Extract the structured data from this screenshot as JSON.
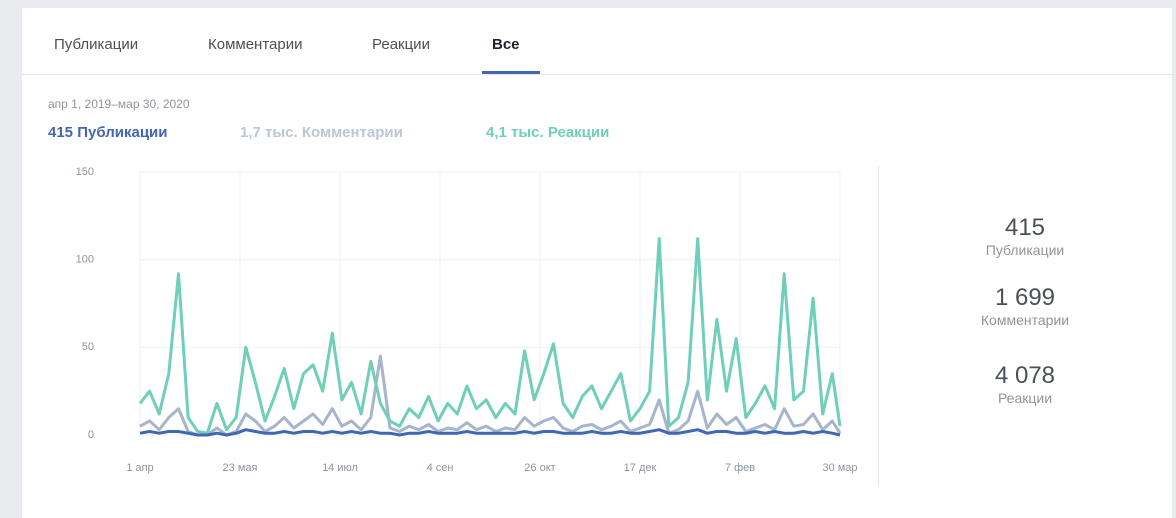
{
  "tabs": [
    "Публикации",
    "Комментарии",
    "Реакции",
    "Все"
  ],
  "date_range": "апр 1, 2019–мар 30, 2020",
  "summary": [
    "415",
    "1,7 тыс.",
    "4,1 тыс."
  ],
  "stats": [
    {
      "value": "415",
      "label": "Публикации"
    },
    {
      "value": "1 699",
      "label": "Комментарии"
    },
    {
      "value": "4 078",
      "label": "Реакции"
    }
  ],
  "chart_data": {
    "type": "line",
    "x": [
      0,
      5,
      10,
      15,
      20,
      25,
      30,
      35,
      40,
      45,
      50,
      55,
      60,
      65,
      70,
      75,
      80,
      85,
      90,
      95,
      100,
      105,
      110,
      115,
      120,
      125,
      130,
      135,
      140,
      145,
      150,
      155,
      160,
      165,
      170,
      175,
      180,
      185,
      190,
      195,
      200,
      205,
      210,
      215,
      220,
      225,
      230,
      235,
      240,
      245,
      250,
      255,
      260,
      265,
      270,
      275,
      280,
      285,
      290,
      295,
      300,
      305,
      310,
      315,
      320,
      325,
      330,
      335,
      340,
      345,
      350,
      355,
      360,
      364
    ],
    "xlim": [
      0,
      364
    ],
    "xticks": [
      {
        "value": 0,
        "label": "1 апр"
      },
      {
        "value": 52,
        "label": "23 мая"
      },
      {
        "value": 104,
        "label": "14 июл"
      },
      {
        "value": 156,
        "label": "4 сен"
      },
      {
        "value": 208,
        "label": "26 окт"
      },
      {
        "value": 260,
        "label": "17 дек"
      },
      {
        "value": 312,
        "label": "7 фев"
      },
      {
        "value": 364,
        "label": "30 мар"
      }
    ],
    "ylim": [
      0,
      150
    ],
    "yticks": [
      0,
      50,
      100,
      150
    ],
    "grid": true,
    "series": [
      {
        "name": "Публикации",
        "color": "#4267b2",
        "values": [
          1,
          2,
          1,
          2,
          2,
          1,
          0,
          0,
          1,
          0,
          1,
          3,
          2,
          1,
          1,
          2,
          1,
          2,
          2,
          1,
          2,
          1,
          2,
          1,
          2,
          1,
          1,
          0,
          1,
          1,
          2,
          1,
          1,
          1,
          2,
          1,
          1,
          1,
          1,
          1,
          2,
          1,
          2,
          2,
          1,
          1,
          1,
          2,
          1,
          1,
          2,
          1,
          1,
          2,
          3,
          1,
          1,
          2,
          3,
          1,
          2,
          2,
          1,
          1,
          2,
          1,
          2,
          1,
          1,
          2,
          1,
          2,
          1,
          0
        ]
      },
      {
        "name": "Комментарии",
        "color": "#a6b4cc",
        "values": [
          5,
          8,
          3,
          10,
          15,
          2,
          0,
          0,
          4,
          0,
          2,
          12,
          8,
          2,
          5,
          10,
          4,
          8,
          12,
          6,
          15,
          5,
          8,
          3,
          10,
          45,
          4,
          2,
          5,
          3,
          6,
          2,
          4,
          3,
          7,
          3,
          5,
          2,
          4,
          3,
          10,
          5,
          8,
          10,
          4,
          2,
          5,
          6,
          3,
          5,
          8,
          2,
          4,
          6,
          20,
          1,
          3,
          8,
          25,
          4,
          12,
          6,
          10,
          2,
          4,
          6,
          3,
          15,
          5,
          6,
          12,
          3,
          8,
          1
        ]
      },
      {
        "name": "Реакции",
        "color": "#6fcfb8",
        "values": [
          18,
          25,
          12,
          35,
          92,
          10,
          2,
          1,
          18,
          3,
          10,
          50,
          30,
          8,
          22,
          38,
          15,
          35,
          40,
          25,
          58,
          20,
          30,
          12,
          42,
          18,
          8,
          5,
          15,
          10,
          22,
          8,
          18,
          12,
          28,
          15,
          20,
          10,
          18,
          12,
          48,
          20,
          35,
          52,
          18,
          10,
          22,
          28,
          15,
          25,
          35,
          8,
          15,
          25,
          112,
          5,
          10,
          30,
          112,
          20,
          66,
          25,
          55,
          10,
          18,
          28,
          15,
          92,
          20,
          25,
          78,
          12,
          35,
          5
        ]
      }
    ]
  }
}
